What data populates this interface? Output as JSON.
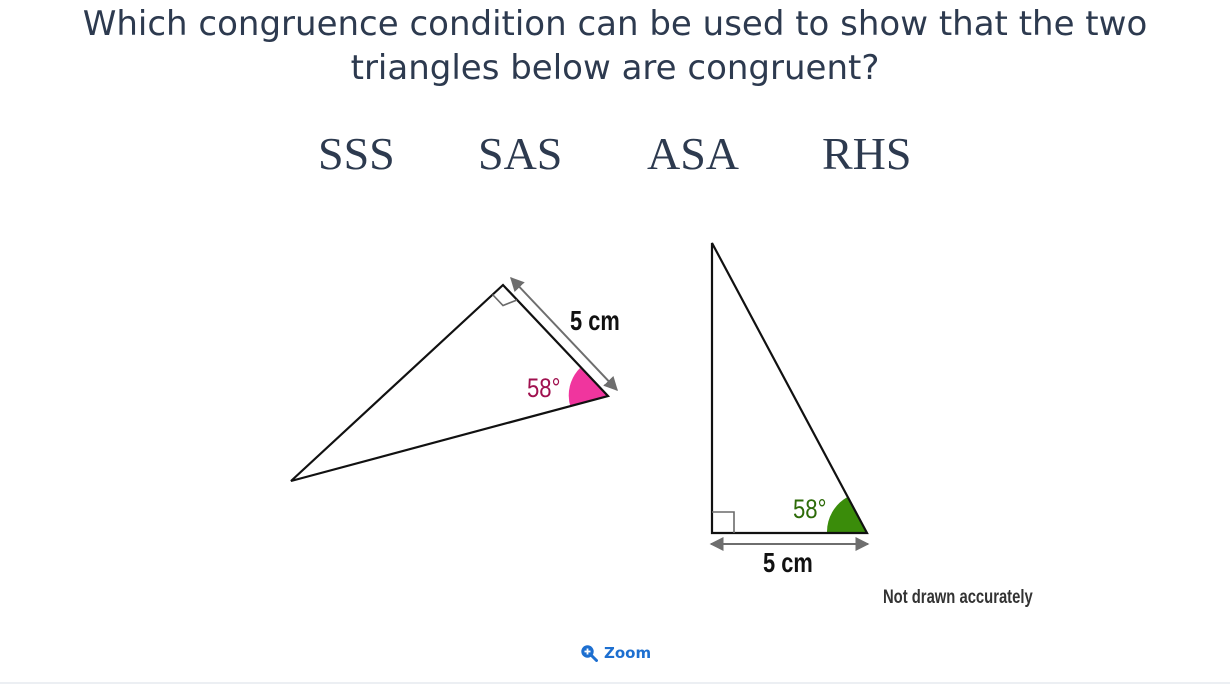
{
  "question": {
    "text": "Which congruence condition can be used to show that the two triangles below are congruent?"
  },
  "options": [
    "SSS",
    "SAS",
    "ASA",
    "RHS"
  ],
  "figure": {
    "triangle_left": {
      "angle_label": "58°",
      "side_label": "5 cm",
      "angle_color": "#f0359e",
      "angle_text_color": "#a0114f"
    },
    "triangle_right": {
      "angle_label": "58°",
      "side_label": "5 cm",
      "angle_color": "#3a8c0a",
      "angle_text_color": "#2d6b08"
    },
    "note": "Not drawn accurately"
  },
  "zoom": {
    "label": "Zoom",
    "icon": "zoom-in-icon",
    "color": "#1d6fd0"
  }
}
